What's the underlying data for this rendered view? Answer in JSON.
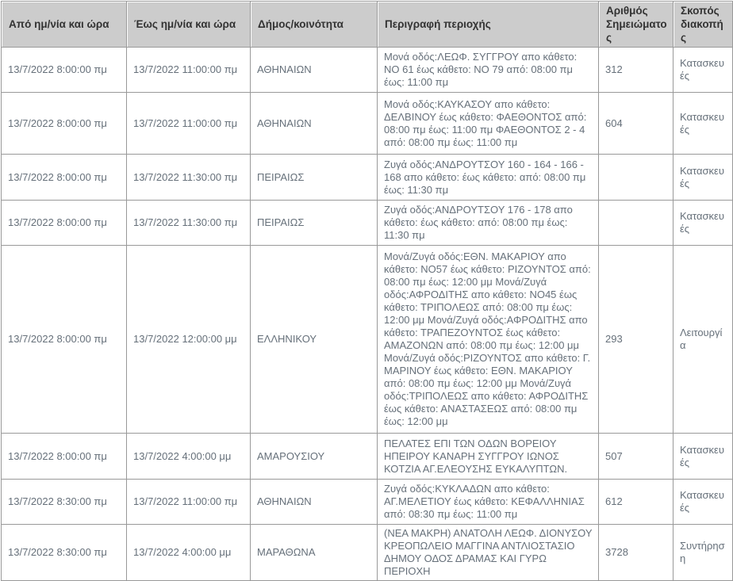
{
  "header": {
    "columns": [
      "Από ημ/νία και ώρα",
      "Έως ημ/νία και ώρα",
      "Δήμος/κοινότητα",
      "Περιγραφή περιοχής",
      "Αριθμός Σημειώματος",
      "Σκοπός διακοπής"
    ]
  },
  "rows": [
    {
      "from": "13/7/2022 8:00:00 πμ",
      "to": "13/7/2022 11:00:00 πμ",
      "municipality": "ΑΘΗΝΑΙΩΝ",
      "description": "Μονά οδός:ΛΕΩΦ. ΣΥΓΓΡΟΥ απο κάθετο: ΝΟ 61 έως κάθετο: ΝΟ 79 από: 08:00 πμ έως: 11:00 πμ",
      "note_number": "312",
      "purpose": "Κατασκευές"
    },
    {
      "from": "13/7/2022 8:00:00 πμ",
      "to": "13/7/2022 11:00:00 πμ",
      "municipality": "ΑΘΗΝΑΙΩΝ",
      "description": "Μονά οδός:ΚΑΥΚΑΣΟΥ απο κάθετο: ΔΕΛΒΙΝΟΥ έως κάθετο: ΦΑΕΘΟΝΤΟΣ από: 08:00 πμ έως: 11:00 πμ ΦΑΕΘΟΝΤΟΣ 2 - 4 από: 08:00 πμ έως: 11:00 πμ",
      "note_number": "604",
      "purpose": "Κατασκευές"
    },
    {
      "from": "13/7/2022 8:00:00 πμ",
      "to": "13/7/2022 11:30:00 πμ",
      "municipality": "ΠΕΙΡΑΙΩΣ",
      "description": "Ζυγά οδός:ΑΝΔΡΟΥΤΣΟΥ 160 - 164 - 166 - 168 απο κάθετο: έως κάθετο: από: 08:00 πμ έως: 11:30 πμ",
      "note_number": "",
      "purpose": "Κατασκευές"
    },
    {
      "from": "13/7/2022 8:00:00 πμ",
      "to": "13/7/2022 11:30:00 πμ",
      "municipality": "ΠΕΙΡΑΙΩΣ",
      "description": "Ζυγά οδός:ΑΝΔΡΟΥΤΣΟΥ 176 - 178 απο κάθετο: έως κάθετο: από: 08:00 πμ έως: 11:30 πμ",
      "note_number": "",
      "purpose": "Κατασκευές"
    },
    {
      "from": "13/7/2022 8:00:00 πμ",
      "to": "13/7/2022 12:00:00 μμ",
      "municipality": "ΕΛΛΗΝΙΚΟΥ",
      "description": "Μονά/Ζυγά οδός:ΕΘΝ. ΜΑΚΑΡΙΟΥ απο κάθετο: ΝΟ57 έως κάθετο: ΡΙΖΟΥΝΤΟΣ από: 08:00 πμ έως: 12:00 μμ Μονά/Ζυγά οδός:ΑΦΡΟΔΙΤΗΣ απο κάθετο: ΝΟ45 έως κάθετο: ΤΡΙΠΟΛΕΩΣ από: 08:00 πμ έως: 12:00 μμ Μονά/Ζυγά οδός:ΑΦΡΟΔΙΤΗΣ απο κάθετο: ΤΡΑΠΕΖΟΥΝΤΟΣ έως κάθετο: ΑΜΑΖΟΝΩΝ από: 08:00 πμ έως: 12:00 μμ Μονά/Ζυγά οδός:ΡΙΖΟΥΝΤΟΣ απο κάθετο: Γ. ΜΑΡΙΝΟΥ έως κάθετο: ΕΘΝ. ΜΑΚΑΡΙΟΥ από: 08:00 πμ έως: 12:00 μμ Μονά/Ζυγά οδός:ΤΡΙΠΟΛΕΩΣ απο κάθετο: ΑΦΡΟΔΙΤΗΣ έως κάθετο: ΑΝΑΣΤΑΣΕΩΣ από: 08:00 πμ έως: 12:00 μμ",
      "note_number": "293",
      "purpose": "Λειτουργία"
    },
    {
      "from": "13/7/2022 8:00:00 πμ",
      "to": "13/7/2022 4:00:00 μμ",
      "municipality": "ΑΜΑΡΟΥΣΙΟΥ",
      "description": "ΠΕΛΑΤΕΣ ΕΠΙ ΤΩΝ ΟΔΩΝ ΒΟΡΕΙΟΥ ΗΠΕΙΡΟΥ ΚΑΝΑΡΗ ΣΥΓΓΡΟΥ ΙΩΝΟΣ ΚΟΤΖΙΑ ΑΓ.ΕΛΕΟΥΣΗΣ ΕΥΚΑΛΥΠΤΩΝ.",
      "note_number": "507",
      "purpose": "Κατασκευές"
    },
    {
      "from": "13/7/2022 8:30:00 πμ",
      "to": "13/7/2022 11:00:00 πμ",
      "municipality": "ΑΘΗΝΑΙΩΝ",
      "description": "Ζυγά οδός:ΚΥΚΛΑΔΩΝ απο κάθετο: ΑΓ.ΜΕΛΕΤΙΟΥ έως κάθετο: ΚΕΦΑΛΛΗΝΙΑΣ από: 08:30 πμ έως: 11:00 πμ",
      "note_number": "612",
      "purpose": "Κατασκευές"
    },
    {
      "from": "13/7/2022 8:30:00 πμ",
      "to": "13/7/2022 4:00:00 μμ",
      "municipality": "ΜΑΡΑΘΩΝΑ",
      "description": "(ΝΕΑ ΜΑΚΡΗ) ΑΝΑΤΟΛΗ ΛΕΩΦ. ΔΙΟΝΥΣΟΥ ΚΡΕΟΠΩΛΕΙΟ ΜΑΓΓΙΝΑ ΑΝΤΛΙΟΣΤΑΣΙΟ ΔΗΜΟΥ ΟΔΟΣ ΔΡΑΜΑΣ ΚΑΙ ΓΥΡΩ ΠΕΡΙΟΧΗ",
      "note_number": "3728",
      "purpose": "Συντήρηση"
    }
  ],
  "colors": {
    "header_bg": "#cccccc",
    "header_text": "#333333",
    "border": "#999999",
    "cell_text": "#66707a"
  }
}
